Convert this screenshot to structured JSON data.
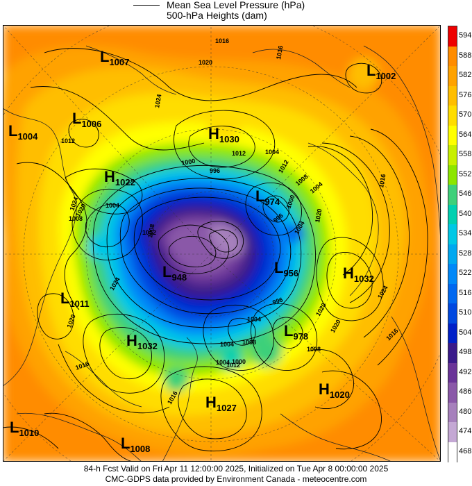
{
  "header": {
    "line1": "Mean Sea Level Pressure (hPa)",
    "line2": "500-hPa Heights (dam)"
  },
  "footer": {
    "line1": "84-h Fcst Valid on Fri Apr 11 12:00:00 2025, Initialized on Tue Apr  8 00:00:00 2025",
    "line2": "CMC-GDPS data provided by Environment Canada - meteocentre.com"
  },
  "colorbar": {
    "levels": [
      "594",
      "588",
      "582",
      "576",
      "570",
      "564",
      "558",
      "552",
      "546",
      "540",
      "534",
      "528",
      "522",
      "516",
      "510",
      "504",
      "498",
      "492",
      "486",
      "480",
      "474",
      "468"
    ],
    "colors": [
      "#ee0000",
      "#ff8c00",
      "#ffa200",
      "#ffbe00",
      "#ffdd00",
      "#ffff00",
      "#c8f000",
      "#8ce600",
      "#3ed07a",
      "#00d0b0",
      "#00c8e6",
      "#00a8f0",
      "#0088f8",
      "#0068f0",
      "#0048e0",
      "#0020c8",
      "#3a1a8a",
      "#6a3498",
      "#8a58a8",
      "#a680bc",
      "#c4a8d4",
      "#ffffff"
    ]
  },
  "systems": [
    {
      "type": "L",
      "value": "1007"
    },
    {
      "type": "L",
      "value": "1002"
    },
    {
      "type": "L",
      "value": "1006"
    },
    {
      "type": "L",
      "value": "1004"
    },
    {
      "type": "H",
      "value": "1030"
    },
    {
      "type": "H",
      "value": "1022"
    },
    {
      "type": "L",
      "value": "974"
    },
    {
      "type": "L",
      "value": "956"
    },
    {
      "type": "L",
      "value": "948"
    },
    {
      "type": "H",
      "value": "1032"
    },
    {
      "type": "L",
      "value": "1011"
    },
    {
      "type": "H",
      "value": "1032"
    },
    {
      "type": "L",
      "value": "978"
    },
    {
      "type": "H",
      "value": "1020"
    },
    {
      "type": "H",
      "value": "1027"
    },
    {
      "type": "L",
      "value": "1010"
    },
    {
      "type": "L",
      "value": "1008"
    }
  ],
  "isobar_labels": [
    "1016",
    "1020",
    "1012",
    "1024",
    "1016",
    "1012",
    "1004",
    "1000",
    "996",
    "1004",
    "1008",
    "1024",
    "1020",
    "1012",
    "1008",
    "1004",
    "1000",
    "996",
    "1004",
    "1008",
    "1012",
    "1024",
    "1020",
    "1016",
    "1020",
    "1016",
    "1024",
    "1016",
    "1020",
    "1004",
    "996",
    "1008",
    "1004",
    "1000",
    "1008",
    "1012",
    "1004",
    "1016",
    "1020"
  ]
}
